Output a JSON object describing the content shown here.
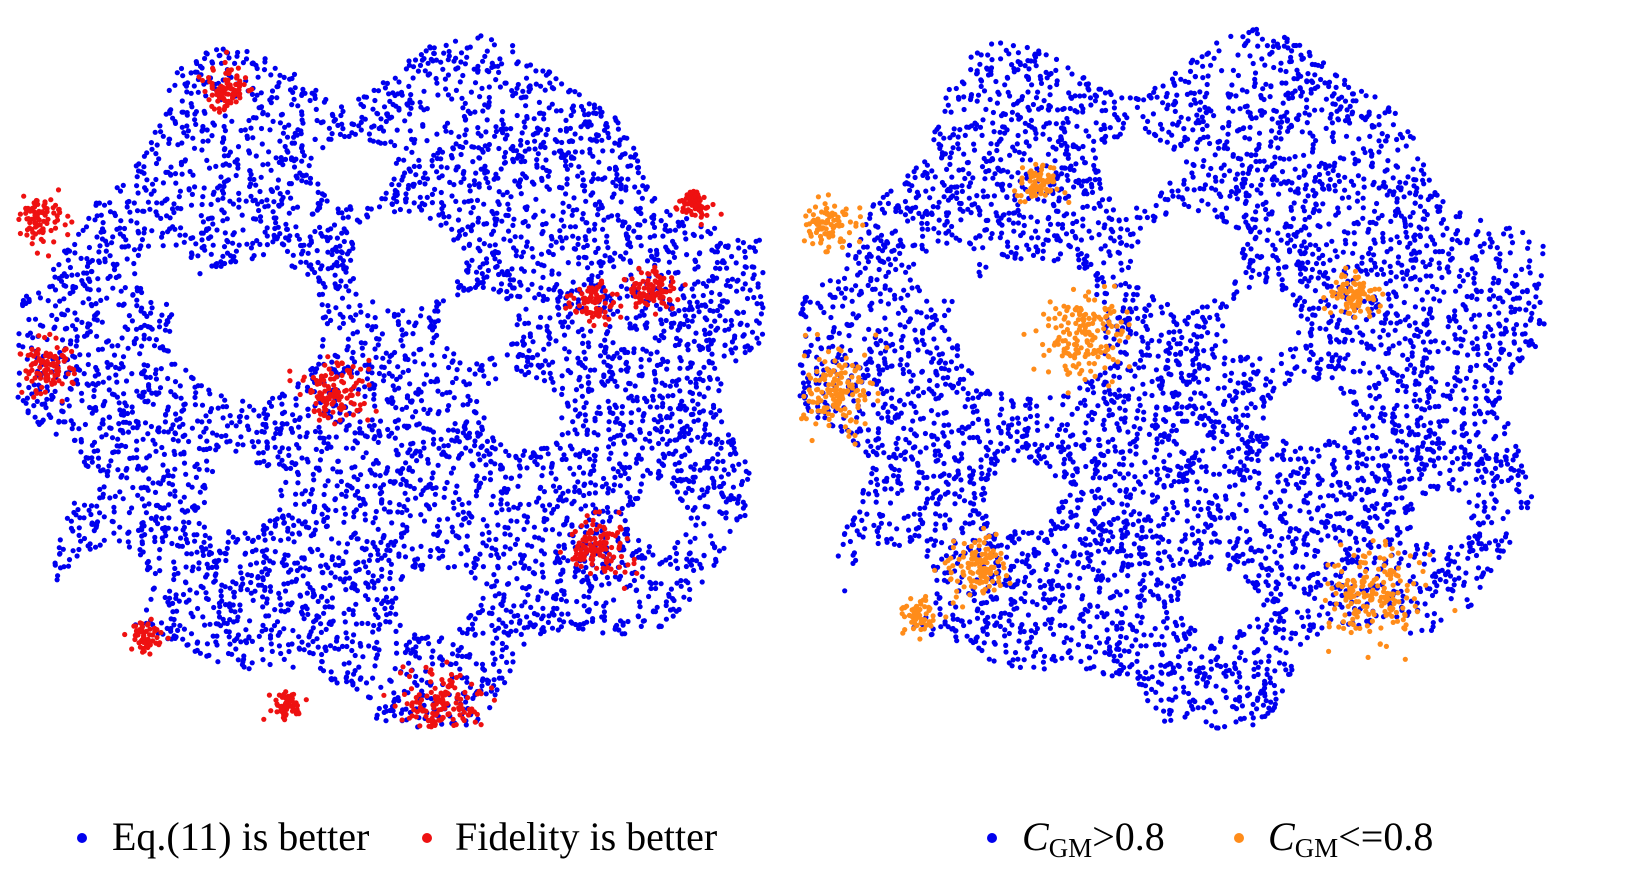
{
  "chart_data": [
    {
      "type": "scatter",
      "title": "",
      "xlabel": "",
      "ylabel": "",
      "grid": false,
      "axes_visible": false,
      "legend_position": "bottom",
      "series": [
        {
          "name": "Eq.(11) is better",
          "color": "#0000ee"
        },
        {
          "name": "Fidelity is better",
          "color": "#ee1111"
        }
      ],
      "highlight_clusters": [
        {
          "series": "Fidelity is better",
          "x": 0.04,
          "y": 0.48,
          "spread": 0.035
        },
        {
          "series": "Fidelity is better",
          "x": 0.03,
          "y": 0.27,
          "spread": 0.03
        },
        {
          "series": "Fidelity is better",
          "x": 0.42,
          "y": 0.52,
          "spread": 0.04
        },
        {
          "series": "Fidelity is better",
          "x": 0.78,
          "y": 0.74,
          "spread": 0.04
        },
        {
          "series": "Fidelity is better",
          "x": 0.85,
          "y": 0.37,
          "spread": 0.03
        },
        {
          "series": "Fidelity is better",
          "x": 0.77,
          "y": 0.39,
          "spread": 0.025
        },
        {
          "series": "Fidelity is better",
          "x": 0.28,
          "y": 0.08,
          "spread": 0.03
        },
        {
          "series": "Fidelity is better",
          "x": 0.57,
          "y": 0.97,
          "spread": 0.05
        },
        {
          "series": "Fidelity is better",
          "x": 0.36,
          "y": 0.97,
          "spread": 0.02
        },
        {
          "series": "Fidelity is better",
          "x": 0.17,
          "y": 0.87,
          "spread": 0.02
        },
        {
          "series": "Fidelity is better",
          "x": 0.91,
          "y": 0.25,
          "spread": 0.02
        }
      ]
    },
    {
      "type": "scatter",
      "title": "",
      "xlabel": "",
      "ylabel": "",
      "grid": false,
      "axes_visible": false,
      "legend_position": "bottom",
      "series": [
        {
          "name": "C_GM>0.8",
          "color": "#0000ee"
        },
        {
          "name": "C_GM<=0.8",
          "color": "#ff8c1a"
        }
      ],
      "highlight_clusters": [
        {
          "series": "C_GM<=0.8",
          "x": 0.05,
          "y": 0.52,
          "spread": 0.05
        },
        {
          "series": "C_GM<=0.8",
          "x": 0.04,
          "y": 0.28,
          "spread": 0.03
        },
        {
          "series": "C_GM<=0.8",
          "x": 0.38,
          "y": 0.44,
          "spread": 0.055
        },
        {
          "series": "C_GM<=0.8",
          "x": 0.77,
          "y": 0.81,
          "spread": 0.06
        },
        {
          "series": "C_GM<=0.8",
          "x": 0.74,
          "y": 0.38,
          "spread": 0.03
        },
        {
          "series": "C_GM<=0.8",
          "x": 0.32,
          "y": 0.22,
          "spread": 0.025
        },
        {
          "series": "C_GM<=0.8",
          "x": 0.24,
          "y": 0.77,
          "spread": 0.04
        },
        {
          "series": "C_GM<=0.8",
          "x": 0.16,
          "y": 0.84,
          "spread": 0.02
        }
      ]
    }
  ],
  "legend_left": {
    "item1_label": "Eq.(11) is better",
    "item2_label": "Fidelity is better"
  },
  "legend_right": {
    "item1_symbol": "C",
    "item1_subscript": "GM",
    "item1_rest": ">0.8",
    "item2_symbol": "C",
    "item2_subscript": "GM",
    "item2_rest": "<=0.8"
  },
  "colors": {
    "blue": "#0000ee",
    "red": "#ee1111",
    "orange": "#ff8c1a"
  }
}
